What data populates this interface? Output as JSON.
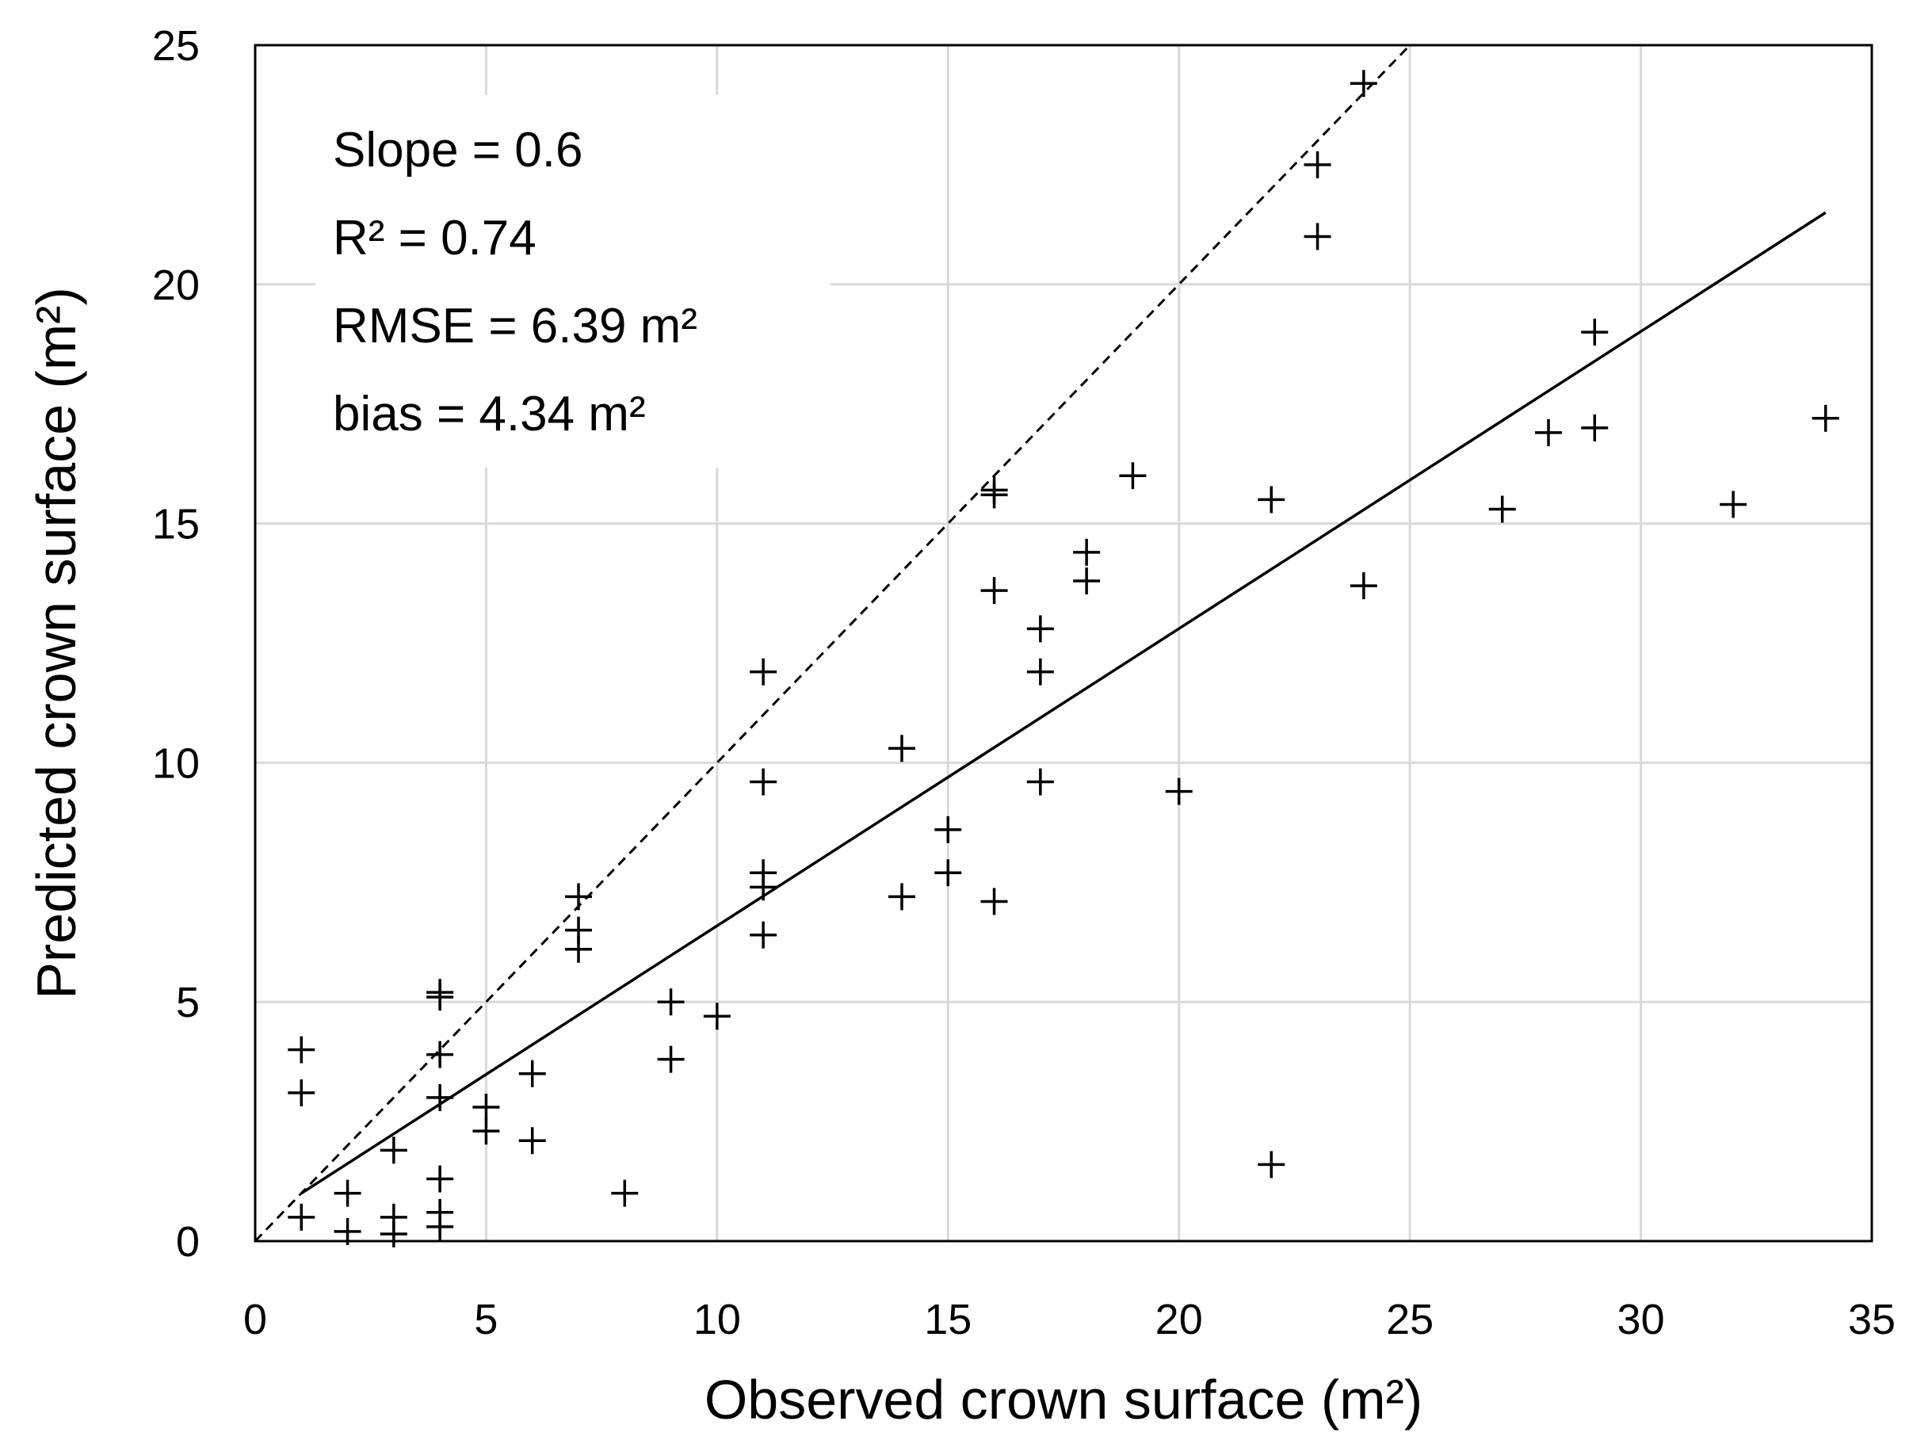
{
  "chart_data": {
    "type": "scatter",
    "xlabel": "Observed crown surface (m²)",
    "ylabel": "Predicted crown surface (m²)",
    "xlim": [
      0,
      35
    ],
    "ylim": [
      0,
      25
    ],
    "xticks": [
      0,
      5,
      10,
      15,
      20,
      25,
      30,
      35
    ],
    "yticks": [
      0,
      5,
      10,
      15,
      20,
      25
    ],
    "grid": true,
    "marker": "plus",
    "points": [
      {
        "x": 1,
        "y": 4.0
      },
      {
        "x": 1,
        "y": 3.1
      },
      {
        "x": 1,
        "y": 0.5
      },
      {
        "x": 2,
        "y": 1.0
      },
      {
        "x": 2,
        "y": 0.2
      },
      {
        "x": 3,
        "y": 1.9
      },
      {
        "x": 3,
        "y": 0.5
      },
      {
        "x": 3,
        "y": 0.15
      },
      {
        "x": 4,
        "y": 5.2
      },
      {
        "x": 4,
        "y": 5.1
      },
      {
        "x": 4,
        "y": 3.9
      },
      {
        "x": 4,
        "y": 3.0
      },
      {
        "x": 4,
        "y": 1.3
      },
      {
        "x": 4,
        "y": 0.6
      },
      {
        "x": 4,
        "y": 0.3
      },
      {
        "x": 5,
        "y": 2.8
      },
      {
        "x": 5,
        "y": 2.3
      },
      {
        "x": 6,
        "y": 3.5
      },
      {
        "x": 6,
        "y": 2.1
      },
      {
        "x": 7,
        "y": 7.2
      },
      {
        "x": 7,
        "y": 6.5
      },
      {
        "x": 7,
        "y": 6.1
      },
      {
        "x": 8,
        "y": 1.0
      },
      {
        "x": 9,
        "y": 5.0
      },
      {
        "x": 9,
        "y": 3.8
      },
      {
        "x": 10,
        "y": 4.7
      },
      {
        "x": 11,
        "y": 11.9
      },
      {
        "x": 11,
        "y": 9.6
      },
      {
        "x": 11,
        "y": 7.7
      },
      {
        "x": 11,
        "y": 7.4
      },
      {
        "x": 11,
        "y": 6.4
      },
      {
        "x": 14,
        "y": 10.3
      },
      {
        "x": 14,
        "y": 7.2
      },
      {
        "x": 15,
        "y": 8.6
      },
      {
        "x": 15,
        "y": 7.7
      },
      {
        "x": 16,
        "y": 15.7
      },
      {
        "x": 16,
        "y": 15.6
      },
      {
        "x": 16,
        "y": 13.6
      },
      {
        "x": 16,
        "y": 7.1
      },
      {
        "x": 17,
        "y": 12.8
      },
      {
        "x": 17,
        "y": 11.9
      },
      {
        "x": 17,
        "y": 9.6
      },
      {
        "x": 18,
        "y": 14.4
      },
      {
        "x": 18,
        "y": 13.8
      },
      {
        "x": 19,
        "y": 16.0
      },
      {
        "x": 20,
        "y": 9.4
      },
      {
        "x": 22,
        "y": 15.5
      },
      {
        "x": 22,
        "y": 1.6
      },
      {
        "x": 23,
        "y": 22.5
      },
      {
        "x": 23,
        "y": 21.0
      },
      {
        "x": 24,
        "y": 24.2
      },
      {
        "x": 24,
        "y": 13.7
      },
      {
        "x": 27,
        "y": 15.3
      },
      {
        "x": 28,
        "y": 16.9
      },
      {
        "x": 29,
        "y": 19.0
      },
      {
        "x": 29,
        "y": 17.0
      },
      {
        "x": 32,
        "y": 15.4
      },
      {
        "x": 34,
        "y": 17.2
      }
    ],
    "one_to_one_line": {
      "from": [
        0,
        0
      ],
      "to": [
        25,
        25
      ],
      "style": "dashed"
    },
    "regression_line": {
      "from": [
        1,
        1.0
      ],
      "to": [
        34,
        21.5
      ],
      "style": "solid"
    },
    "annotations": [
      "Slope = 0.6",
      "R² = 0.74",
      "RMSE = 6.39 m²",
      "bias = 4.34 m²"
    ]
  }
}
